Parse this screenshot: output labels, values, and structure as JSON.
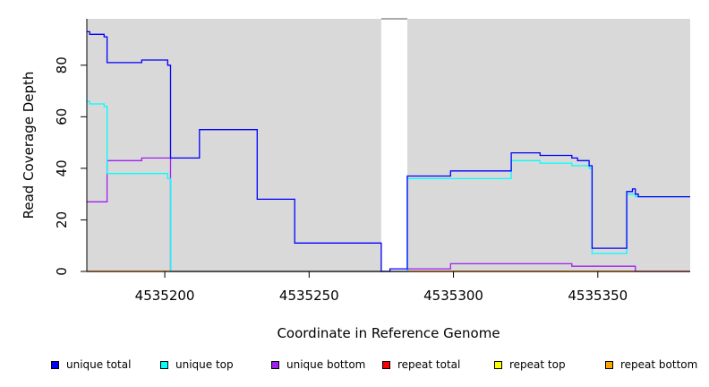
{
  "chart_data": {
    "type": "line",
    "title": "",
    "xlabel": "Coordinate in Reference Genome",
    "ylabel": "Read Coverage Depth",
    "xlim": [
      4535173,
      4535382
    ],
    "ylim": [
      0,
      98
    ],
    "xticks": [
      4535200,
      4535250,
      4535300,
      4535350
    ],
    "yticks": [
      0,
      20,
      40,
      60,
      80
    ],
    "grid": false,
    "background_color": "#d9d9d9",
    "gap_region": [
      4535275,
      4535284
    ],
    "legend_position": "bottom",
    "series": [
      {
        "name": "unique total",
        "color": "#0000ff",
        "step": true,
        "x": [
          4535173,
          4535174,
          4535179,
          4535180,
          4535192,
          4535201,
          4535202,
          4535212,
          4535232,
          4535245,
          4535275,
          4535278,
          4535284,
          4535299,
          4535320,
          4535330,
          4535341,
          4535343,
          4535347,
          4535348,
          4535360,
          4535362,
          4535363,
          4535364,
          4535382
        ],
        "y": [
          93,
          92,
          91,
          81,
          82,
          80,
          44,
          55,
          28,
          11,
          0,
          1,
          37,
          39,
          46,
          45,
          44,
          43,
          41,
          9,
          31,
          32,
          30,
          29,
          29
        ]
      },
      {
        "name": "unique top",
        "color": "#00ffff",
        "step": true,
        "x": [
          4535173,
          4535174,
          4535179,
          4535180,
          4535201,
          4535202,
          4535275,
          4535284,
          4535299,
          4535320,
          4535330,
          4535341,
          4535347,
          4535348,
          4535360,
          4535363,
          4535382
        ],
        "y": [
          66,
          65,
          64,
          38,
          36,
          0,
          0,
          36,
          36,
          43,
          42,
          41,
          40,
          7,
          30,
          29,
          29
        ]
      },
      {
        "name": "unique bottom",
        "color": "#a020f0",
        "step": true,
        "x": [
          4535173,
          4535179,
          4535180,
          4535192,
          4535202,
          4535275,
          4535284,
          4535299,
          4535341,
          4535363,
          4535382
        ],
        "y": [
          27,
          27,
          43,
          44,
          0,
          0,
          1,
          3,
          2,
          0,
          0
        ]
      },
      {
        "name": "repeat total",
        "color": "#ff0000",
        "step": true,
        "x": [
          4535173,
          4535382
        ],
        "y": [
          0,
          0
        ]
      },
      {
        "name": "repeat top",
        "color": "#ffff00",
        "step": true,
        "x": [
          4535173,
          4535382
        ],
        "y": [
          0,
          0
        ]
      },
      {
        "name": "repeat bottom",
        "color": "#ffa500",
        "step": true,
        "x": [
          4535173,
          4535382
        ],
        "y": [
          0,
          0
        ]
      }
    ]
  }
}
